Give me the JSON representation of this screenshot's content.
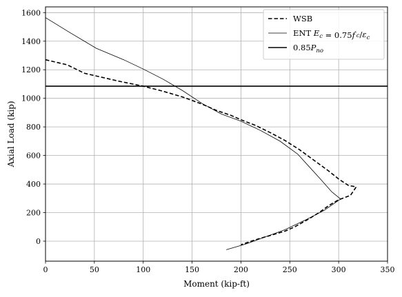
{
  "chart_data": {
    "type": "line",
    "xlabel": "Moment (kip-ft)",
    "ylabel": "Axial Load (kip)",
    "xlim": [
      0,
      350
    ],
    "ylim": [
      -140,
      1640
    ],
    "xticks": [
      0,
      50,
      100,
      150,
      200,
      250,
      300,
      350
    ],
    "yticks": [
      0,
      200,
      400,
      600,
      800,
      1000,
      1200,
      1400,
      1600
    ],
    "xtick_labels": [
      "0",
      "50",
      "100",
      "150",
      "200",
      "250",
      "300",
      "350"
    ],
    "ytick_labels": [
      "0",
      "200",
      "400",
      "600",
      "800",
      "1000",
      "1200",
      "1400",
      "1600"
    ],
    "grid": true,
    "legend_position": "top-right",
    "series": [
      {
        "name": "WSB",
        "style": "dashed",
        "color": "#000000",
        "x": [
          0,
          22,
          40,
          75,
          100,
          120,
          140,
          160,
          175,
          190,
          200,
          215,
          230,
          245,
          260,
          275,
          290,
          300,
          310,
          318,
          312,
          300,
          290,
          280,
          268,
          255,
          245,
          230,
          215,
          200
        ],
        "y": [
          1270,
          1235,
          1175,
          1120,
          1085,
          1050,
          1010,
          960,
          915,
          880,
          850,
          810,
          760,
          705,
          640,
          565,
          490,
          435,
          390,
          380,
          320,
          290,
          250,
          200,
          150,
          100,
          70,
          40,
          10,
          -25
        ]
      },
      {
        "name": "ENT E_c = 0.75f'_c/ε_c",
        "style": "solid",
        "color": "#000000",
        "x": [
          0,
          25,
          52,
          80,
          100,
          120,
          140,
          160,
          180,
          200,
          220,
          240,
          258,
          270,
          282,
          293,
          302,
          285,
          265,
          245,
          225,
          205,
          185
        ],
        "y": [
          1565,
          1460,
          1350,
          1270,
          1205,
          1135,
          1055,
          965,
          890,
          840,
          775,
          700,
          610,
          520,
          430,
          345,
          295,
          215,
          145,
          80,
          30,
          -20,
          -60
        ]
      },
      {
        "name": "0.85P_no",
        "style": "solid-thick",
        "color": "#000000",
        "x": [
          0,
          350
        ],
        "y": [
          1085,
          1085
        ]
      }
    ]
  },
  "legend": {
    "items": [
      {
        "label": "WSB"
      },
      {
        "label_main": "ENT ",
        "label_math": "E_c = 0.75f'_c/ε_c"
      },
      {
        "label_math": "0.85P_no"
      }
    ]
  }
}
